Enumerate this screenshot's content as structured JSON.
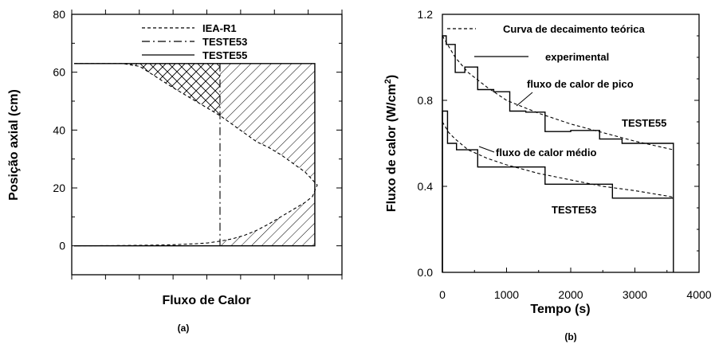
{
  "chart_data": [
    {
      "type": "line",
      "panel_label": "(a)",
      "xlabel": "Fluxo de Calor",
      "ylabel": "Posição axial  (cm)",
      "ylim": [
        -10,
        80
      ],
      "yticks": [
        0,
        20,
        40,
        60,
        80
      ],
      "xlim": [
        0,
        1
      ],
      "legend": [
        "IEA-R1",
        "TESTE53",
        "TESTE55"
      ],
      "legend_position": "top-center",
      "series": [
        {
          "name": "IEA-R1",
          "style": "dashed",
          "x": [
            0,
            0.2,
            0.27,
            0.4,
            0.5,
            0.6,
            0.65,
            0.7,
            0.75,
            0.8,
            0.85,
            0.9,
            0.95,
            1.0,
            0.98,
            0.95,
            0.9,
            0.85,
            0.8,
            0.75,
            0.7,
            0.65,
            0.6,
            0.55,
            0.5,
            0.4,
            0.3,
            0.2,
            0
          ],
          "y": [
            63,
            63,
            62,
            55,
            50,
            45,
            42,
            39,
            36,
            34,
            31.5,
            28.5,
            25.5,
            21,
            17,
            15,
            12.5,
            10,
            7.5,
            5.3,
            3.6,
            2.4,
            1.6,
            1.0,
            0.7,
            0.35,
            0.2,
            0.1,
            0
          ]
        },
        {
          "name": "TESTE53",
          "style": "dash-dot",
          "x": [
            0.6,
            0.6,
            0.6
          ],
          "y": [
            63,
            20,
            0
          ]
        },
        {
          "name": "TESTE55",
          "style": "solid",
          "x": [
            0,
            0.99,
            0.99,
            0
          ],
          "y": [
            63,
            63,
            0,
            0
          ]
        }
      ],
      "regions": [
        {
          "name": "cross-hatched",
          "between": [
            "IEA-R1",
            "TESTE53"
          ],
          "y_range": [
            36,
            63
          ]
        },
        {
          "name": "diagonal-hatched",
          "between": [
            "TESTE53",
            "TESTE55"
          ],
          "y_range": [
            0,
            63
          ]
        }
      ]
    },
    {
      "type": "line",
      "panel_label": "(b)",
      "xlabel": "Tempo (s)",
      "ylabel": "Fluxo de calor (W/cm²)",
      "xlim": [
        0,
        4000
      ],
      "ylim": [
        0,
        1.2
      ],
      "xticks": [
        0,
        1000,
        2000,
        3000,
        4000
      ],
      "yticks": [
        0.0,
        0.4,
        0.8,
        1.2
      ],
      "ytick_labels": [
        "0.0",
        "0.4",
        "0.8",
        "1.2"
      ],
      "legend": [
        "Curva de decaimento teórica",
        "experimental"
      ],
      "legend_position": "top-right",
      "annotations": [
        "fluxo de calor de pico",
        "fluxo de calor médio",
        "TESTE55",
        "TESTE53"
      ],
      "series": [
        {
          "name": "TESTE55 experimental",
          "style": "solid",
          "x": [
            0,
            0,
            60,
            60,
            200,
            200,
            350,
            350,
            550,
            550,
            800,
            800,
            1050,
            1050,
            1300,
            1300,
            1600,
            1600,
            2000,
            2000,
            2450,
            2450,
            2800,
            2800,
            3600,
            3600
          ],
          "y": [
            0,
            1.1,
            1.1,
            1.06,
            1.06,
            0.93,
            0.93,
            0.955,
            0.955,
            0.85,
            0.85,
            0.84,
            0.84,
            0.75,
            0.75,
            0.745,
            0.745,
            0.655,
            0.655,
            0.66,
            0.66,
            0.62,
            0.62,
            0.6,
            0.6,
            0
          ]
        },
        {
          "name": "TESTE53 experimental",
          "style": "solid",
          "x": [
            0,
            0,
            80,
            80,
            220,
            220,
            550,
            550,
            1050,
            1050,
            1600,
            1600,
            2650,
            2650,
            3600
          ],
          "y": [
            0,
            0.75,
            0.75,
            0.6,
            0.6,
            0.57,
            0.57,
            0.49,
            0.49,
            0.49,
            0.49,
            0.41,
            0.41,
            0.345,
            0.345
          ]
        },
        {
          "name": "TESTE55 teórica",
          "style": "dashed",
          "x": [
            0,
            100,
            200,
            400,
            700,
            1000,
            1500,
            2000,
            2500,
            3000,
            3600
          ],
          "y": [
            1.1,
            1.05,
            1.0,
            0.93,
            0.86,
            0.8,
            0.74,
            0.69,
            0.65,
            0.61,
            0.57
          ]
        },
        {
          "name": "TESTE53 teórica",
          "style": "dashed",
          "x": [
            0,
            100,
            200,
            400,
            700,
            1000,
            1500,
            2000,
            2500,
            3000,
            3600
          ],
          "y": [
            0.7,
            0.65,
            0.62,
            0.57,
            0.53,
            0.5,
            0.46,
            0.43,
            0.4,
            0.38,
            0.35
          ]
        }
      ]
    }
  ]
}
